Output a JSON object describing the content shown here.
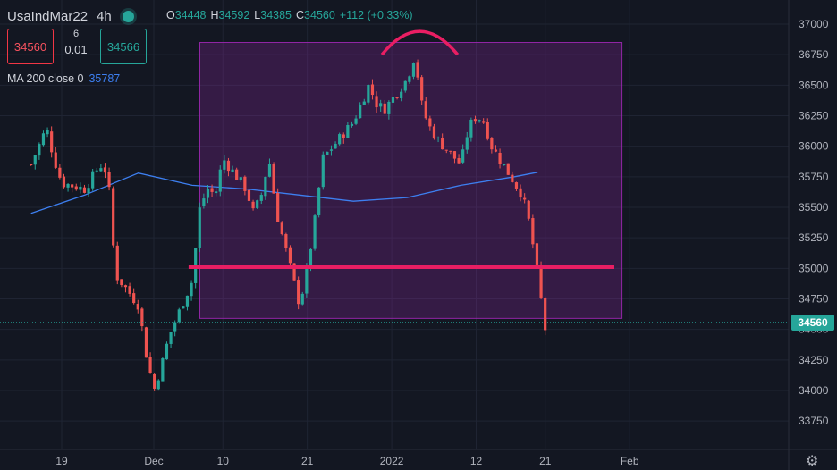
{
  "header": {
    "symbol": "UsaIndMar22",
    "timeframe": "4h",
    "ohlc": [
      {
        "key": "O",
        "value": "34448"
      },
      {
        "key": "H",
        "value": "34592"
      },
      {
        "key": "L",
        "value": "34385"
      },
      {
        "key": "C",
        "value": "34560"
      },
      {
        "key": "",
        "value": "+112 (+0.33%)"
      }
    ]
  },
  "trade": {
    "sell_price": "34560",
    "spread_top": "6",
    "spread_bottom": "0.01",
    "buy_price": "34566"
  },
  "indicator": {
    "label": "MA 200 close 0",
    "value": "35787",
    "color": "#3d7ff0"
  },
  "colors": {
    "up": "#26a69a",
    "down": "#ef5350",
    "ma": "#3d7ff0",
    "zone": "#9c27b0",
    "support_line": "#e91e63"
  },
  "current_price_label": "34560",
  "chart_data": {
    "type": "candlestick",
    "y_axis_ticks": [
      37000,
      36750,
      36500,
      36250,
      36000,
      35750,
      35500,
      35250,
      35000,
      34750,
      34500,
      34250,
      34000,
      33750
    ],
    "x_axis_ticks": [
      "19",
      "Dec",
      "10",
      "21",
      "2022",
      "12",
      "21",
      "Feb"
    ],
    "ylim": [
      33550,
      37150
    ],
    "close_path": [
      [
        "Nov 15",
        35850
      ],
      [
        "Nov 16",
        36000
      ],
      [
        "Nov 17",
        36150
      ],
      [
        "Nov 18",
        35900
      ],
      [
        "Nov 19",
        35700
      ],
      [
        "Nov 22",
        35650
      ],
      [
        "Nov 23",
        35750
      ],
      [
        "Nov 24",
        35850
      ],
      [
        "Nov 25",
        35780
      ],
      [
        "Nov 26",
        34950
      ],
      [
        "Nov 29",
        34700
      ],
      [
        "Nov 30",
        34300
      ],
      [
        "Dec 1",
        34000
      ],
      [
        "Dec 2",
        34200
      ],
      [
        "Dec 3",
        34450
      ],
      [
        "Dec 6",
        34900
      ],
      [
        "Dec 7",
        35500
      ],
      [
        "Dec 8",
        35650
      ],
      [
        "Dec 9",
        35600
      ],
      [
        "Dec 10",
        35900
      ],
      [
        "Dec 13",
        35650
      ],
      [
        "Dec 14",
        35450
      ],
      [
        "Dec 15",
        35600
      ],
      [
        "Dec 16",
        35900
      ],
      [
        "Dec 17",
        35450
      ],
      [
        "Dec 20",
        34700
      ],
      [
        "Dec 21",
        35000
      ],
      [
        "Dec 22",
        35400
      ],
      [
        "Dec 23",
        35900
      ],
      [
        "Dec 27",
        36200
      ],
      [
        "Dec 28",
        36350
      ],
      [
        "Dec 29",
        36500
      ],
      [
        "Dec 30",
        36350
      ],
      [
        "Dec 31",
        36300
      ],
      [
        "Jan 3",
        36550
      ],
      [
        "Jan 4",
        36750
      ],
      [
        "Jan 5",
        36300
      ],
      [
        "Jan 6",
        36150
      ],
      [
        "Jan 7",
        36050
      ],
      [
        "Jan 10",
        35850
      ],
      [
        "Jan 11",
        36150
      ],
      [
        "Jan 12",
        36250
      ],
      [
        "Jan 13",
        36200
      ],
      [
        "Jan 14",
        36000
      ],
      [
        "Jan 18",
        35600
      ],
      [
        "Jan 19",
        35350
      ],
      [
        "Jan 20",
        34950
      ],
      [
        "Jan 21",
        34500
      ]
    ],
    "ma_path": [
      [
        "Nov 15",
        35450
      ],
      [
        "Nov 22",
        35600
      ],
      [
        "Nov 29",
        35780
      ],
      [
        "Dec 6",
        35680
      ],
      [
        "Dec 13",
        35650
      ],
      [
        "Dec 20",
        35600
      ],
      [
        "Dec 27",
        35550
      ],
      [
        "Jan 3",
        35580
      ],
      [
        "Jan 10",
        35680
      ],
      [
        "Jan 17",
        35750
      ],
      [
        "Jan 20",
        35787
      ]
    ],
    "zone": {
      "from": "Dec 7",
      "to": "Jan 31",
      "top": 36850,
      "bottom": 34590
    },
    "support_level": 35010,
    "current_price": 34560
  }
}
